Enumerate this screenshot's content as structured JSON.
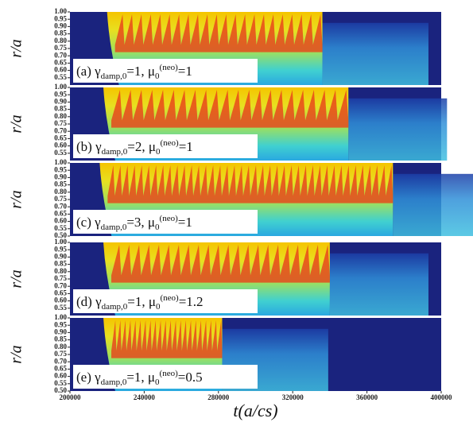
{
  "chart_data": [
    {
      "type": "heatmap",
      "ylabel": "r/a",
      "annotation": [
        "(a) γ",
        "damp,0",
        "=1, μ",
        "0",
        "(neo)",
        "=1"
      ],
      "ylim": [
        0.5,
        1.0
      ],
      "yticks": [
        {
          "value": 1,
          "label": "1.00"
        },
        0.95,
        {
          "value": 0.9,
          "label": "0.90"
        },
        0.85,
        {
          "value": 0.8,
          "label": "0.80"
        },
        0.75,
        {
          "value": 0.7,
          "label": "0.70"
        },
        0.65,
        {
          "value": 0.6,
          "label": "0.60"
        },
        0.55
      ]
    },
    {
      "type": "heatmap",
      "ylabel": "r/a",
      "annotation": [
        "(b) γ",
        "damp,0",
        "=2, μ",
        "0",
        "(neo)",
        "=1"
      ],
      "ylim": [
        0.5,
        1.0
      ],
      "yticks": [
        {
          "value": 1,
          "label": "1.00"
        },
        0.95,
        {
          "value": 0.9,
          "label": "0.90"
        },
        0.85,
        {
          "value": 0.8,
          "label": "0.80"
        },
        0.75,
        {
          "value": 0.7,
          "label": "0.70"
        },
        0.65,
        {
          "value": 0.6,
          "label": "0.60"
        },
        0.55
      ]
    },
    {
      "type": "heatmap",
      "ylabel": "r/a",
      "annotation": [
        "(c) γ",
        "damp,0",
        "=3, μ",
        "0",
        "(neo)",
        "=1"
      ],
      "ylim": [
        0.5,
        1.0
      ],
      "yticks": [
        {
          "value": 1,
          "label": "1.00"
        },
        0.95,
        {
          "value": 0.9,
          "label": "0.90"
        },
        0.85,
        {
          "value": 0.8,
          "label": "0.80"
        },
        0.75,
        {
          "value": 0.7,
          "label": "0.70"
        },
        0.65,
        {
          "value": 0.6,
          "label": "0.60"
        },
        0.55,
        {
          "value": 0.5,
          "label": "0.50"
        }
      ]
    },
    {
      "type": "heatmap",
      "ylabel": "r/a",
      "annotation": [
        "(d) γ",
        "damp,0",
        "=1, μ",
        "0",
        "(neo)",
        "=1.2"
      ],
      "ylim": [
        0.5,
        1.0
      ],
      "yticks": [
        {
          "value": 1,
          "label": "1.00"
        },
        0.95,
        {
          "value": 0.9,
          "label": "0.90"
        },
        0.85,
        {
          "value": 0.8,
          "label": "0.80"
        },
        0.75,
        {
          "value": 0.7,
          "label": "0.70"
        },
        0.65,
        {
          "value": 0.6,
          "label": "0.60"
        },
        0.55
      ]
    },
    {
      "type": "heatmap",
      "ylabel": "r/a",
      "annotation": [
        "(e) γ",
        "damp,0",
        "=1, μ",
        "0",
        "(neo)",
        "=0.5"
      ],
      "ylim": [
        0.5,
        1.0
      ],
      "yticks": [
        {
          "value": 1,
          "label": "1.00"
        },
        0.95,
        {
          "value": 0.9,
          "label": "0.90"
        },
        0.85,
        {
          "value": 0.8,
          "label": "0.80"
        },
        0.75,
        {
          "value": 0.7,
          "label": "0.70"
        },
        0.65,
        {
          "value": 0.6,
          "label": "0.60"
        },
        0.55,
        {
          "value": 0.5,
          "label": "0.50"
        }
      ],
      "xlabel": "t(a/cs)",
      "xlim": [
        200000,
        400000
      ],
      "xticks": [
        200000,
        240000,
        280000,
        320000,
        360000,
        400000
      ]
    }
  ]
}
